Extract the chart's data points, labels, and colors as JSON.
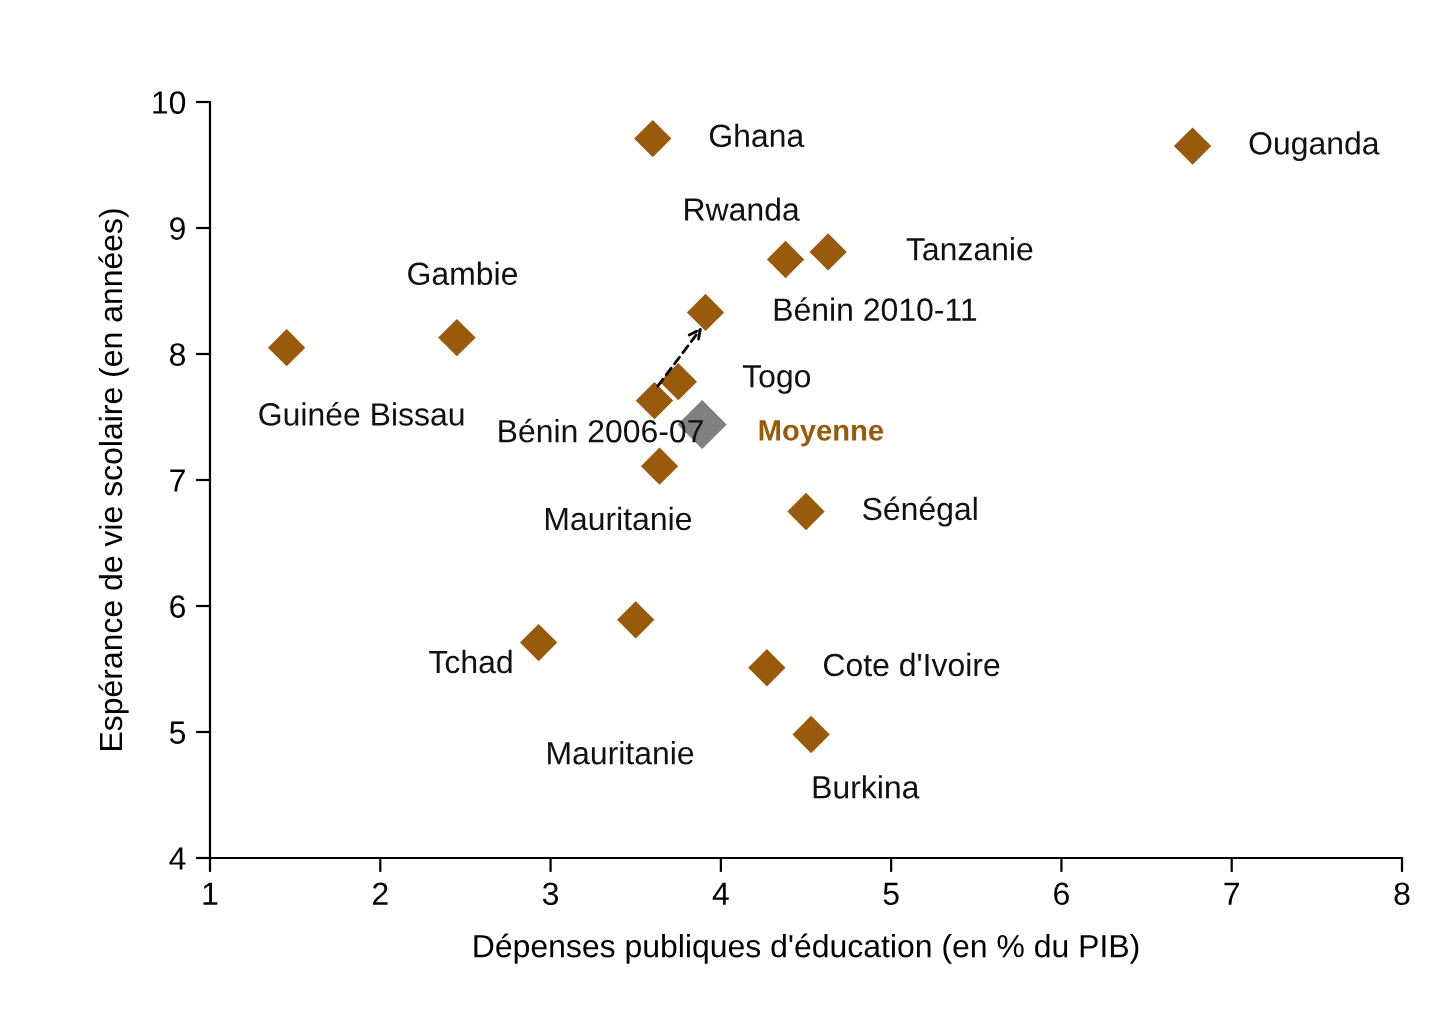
{
  "chart_data": {
    "type": "scatter",
    "xlabel": "Dépenses publiques d'éducation (en % du PIB)",
    "ylabel": "Espérance de vie scolaire (en années)",
    "xlim": [
      1,
      8
    ],
    "xticks": [
      1,
      2,
      3,
      4,
      5,
      6,
      7,
      8
    ],
    "ylim": [
      4,
      10
    ],
    "yticks": [
      4,
      5,
      6,
      7,
      8,
      9,
      10
    ],
    "grid": false,
    "legend": false,
    "marker": "diamond",
    "series": [
      {
        "color": "#9a5a0b",
        "x": [
          3.6,
          6.77,
          4.38,
          4.63,
          3.91,
          2.45,
          1.45,
          3.75,
          3.61,
          3.64,
          4.5,
          4.27,
          2.93,
          3.5,
          4.53
        ],
        "values": [
          9.71,
          9.65,
          8.75,
          8.81,
          8.33,
          8.13,
          8.05,
          7.78,
          7.63,
          7.11,
          6.75,
          5.51,
          5.71,
          5.89,
          4.98
        ]
      },
      {
        "name": "Moyenne",
        "color": "#808080",
        "x": [
          3.89
        ],
        "values": [
          7.44
        ]
      }
    ],
    "annotations": [
      {
        "text": "Ghana",
        "x": 3.6,
        "y": 9.71
      },
      {
        "text": "Ouganda",
        "x": 6.77,
        "y": 9.65
      },
      {
        "text": "Rwanda",
        "x": 4.38,
        "y": 8.75
      },
      {
        "text": "Tanzanie",
        "x": 4.63,
        "y": 8.81
      },
      {
        "text": "Bénin 2010-11",
        "x": 3.91,
        "y": 8.33
      },
      {
        "text": "Gambie",
        "x": 2.45,
        "y": 8.13
      },
      {
        "text": "Guinée Bissau",
        "x": 1.45,
        "y": 8.05
      },
      {
        "text": "Togo",
        "x": 3.75,
        "y": 7.78
      },
      {
        "text": "Bénin 2006-07",
        "x": 3.61,
        "y": 7.63
      },
      {
        "text": "Mauritanie",
        "x": 3.64,
        "y": 7.11
      },
      {
        "text": "Sénégal",
        "x": 4.5,
        "y": 6.75
      },
      {
        "text": "Cote d'Ivoire",
        "x": 4.27,
        "y": 5.51
      },
      {
        "text": "Tchad",
        "x": 2.93,
        "y": 5.71
      },
      "Mauritanie",
      {
        "text": "Burkina",
        "x": 4.53,
        "y": 4.98
      }
    ]
  }
}
